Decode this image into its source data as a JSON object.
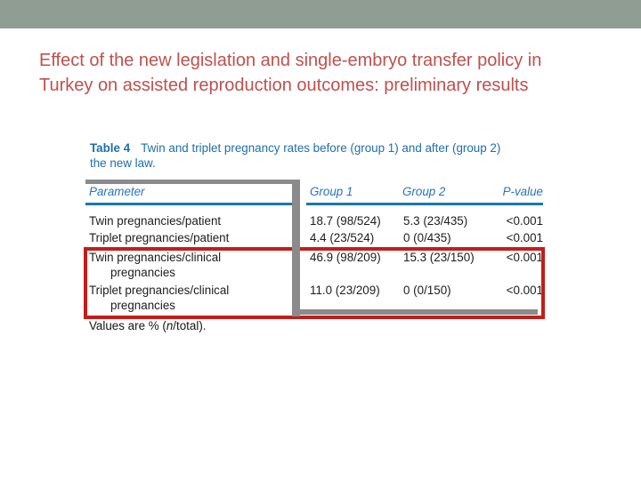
{
  "slide": {
    "title_lines": [
      "Effect of the new legislation and single-embryo transfer policy in",
      "Turkey on assisted reproduction outcomes: preliminary results"
    ]
  },
  "table": {
    "caption_label": "Table 4",
    "caption_text_line1": "Twin and triplet pregnancy rates before (group 1) and after (group 2)",
    "caption_text_line2": "the new law.",
    "headers": {
      "parameter": "Parameter",
      "group1": "Group 1",
      "group2": "Group 2",
      "pvalue": "P-value"
    },
    "rows": [
      {
        "parameter": "Twin pregnancies/patient",
        "group1": "18.7 (98/524)",
        "group2": "5.3 (23/435)",
        "pvalue": "<0.001"
      },
      {
        "parameter": "Triplet pregnancies/patient",
        "group1": "4.4 (23/524)",
        "group2": "0 (0/435)",
        "pvalue": "<0.001"
      },
      {
        "parameter": "Twin pregnancies/clinical",
        "parameter_line2": "pregnancies",
        "group1": "46.9 (98/209)",
        "group2": "15.3 (23/150)",
        "pvalue": "<0.001"
      },
      {
        "parameter": "Triplet pregnancies/clinical",
        "parameter_line2": "pregnancies",
        "group1": "11.0 (23/209)",
        "group2": "0 (0/150)",
        "pvalue": "<0.001"
      }
    ],
    "footnote": {
      "pre": "Values are % (",
      "italic": "n",
      "post": "/total)."
    }
  },
  "colors": {
    "top_bar": "#8f9d92",
    "title_text": "#c0504d",
    "caption_blue": "#1d6ead",
    "header_blue": "#2576b4",
    "rule_blue": "#1878b2",
    "highlight_red": "#c41d18",
    "annotation_gray": "#8b8b8b",
    "body_text": "#1d1d1d"
  }
}
